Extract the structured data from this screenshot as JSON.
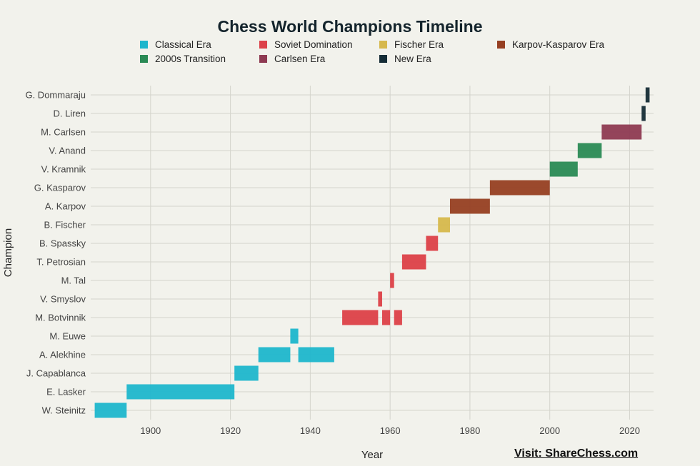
{
  "chart_data": {
    "type": "timeline",
    "title": "Chess World Champions Timeline",
    "xlabel": "Year",
    "ylabel": "Champion",
    "xlim": [
      1885,
      2026
    ],
    "xticks": [
      1900,
      1920,
      1940,
      1960,
      1980,
      2000,
      2020
    ],
    "grid": true,
    "legend_position": "top",
    "eras": [
      {
        "name": "Classical Era",
        "color": "#1eb6cc"
      },
      {
        "name": "Soviet Domination",
        "color": "#dc4048"
      },
      {
        "name": "Fischer Era",
        "color": "#d6b84c"
      },
      {
        "name": "Karpov-Kasparov Era",
        "color": "#963f22"
      },
      {
        "name": "2000s Transition",
        "color": "#2a8a55"
      },
      {
        "name": "Carlsen Era",
        "color": "#8e3a52"
      },
      {
        "name": "New Era",
        "color": "#152c36"
      }
    ],
    "champions": [
      "W. Steinitz",
      "E. Lasker",
      "J. Capablanca",
      "A. Alekhine",
      "M. Euwe",
      "M. Botvinnik",
      "V. Smyslov",
      "M. Tal",
      "T. Petrosian",
      "B. Spassky",
      "B. Fischer",
      "A. Karpov",
      "G. Kasparov",
      "V. Kramnik",
      "V. Anand",
      "M. Carlsen",
      "D. Liren",
      "G. Dommaraju"
    ],
    "reigns": [
      {
        "champion": "W. Steinitz",
        "start": 1886,
        "end": 1894,
        "era": "Classical Era"
      },
      {
        "champion": "E. Lasker",
        "start": 1894,
        "end": 1921,
        "era": "Classical Era"
      },
      {
        "champion": "J. Capablanca",
        "start": 1921,
        "end": 1927,
        "era": "Classical Era"
      },
      {
        "champion": "A. Alekhine",
        "start": 1927,
        "end": 1935,
        "era": "Classical Era"
      },
      {
        "champion": "M. Euwe",
        "start": 1935,
        "end": 1937,
        "era": "Classical Era"
      },
      {
        "champion": "A. Alekhine",
        "start": 1937,
        "end": 1946,
        "era": "Classical Era"
      },
      {
        "champion": "M. Botvinnik",
        "start": 1948,
        "end": 1957,
        "era": "Soviet Domination"
      },
      {
        "champion": "V. Smyslov",
        "start": 1957,
        "end": 1958,
        "era": "Soviet Domination"
      },
      {
        "champion": "M. Botvinnik",
        "start": 1958,
        "end": 1960,
        "era": "Soviet Domination"
      },
      {
        "champion": "M. Tal",
        "start": 1960,
        "end": 1961,
        "era": "Soviet Domination"
      },
      {
        "champion": "M. Botvinnik",
        "start": 1961,
        "end": 1963,
        "era": "Soviet Domination"
      },
      {
        "champion": "T. Petrosian",
        "start": 1963,
        "end": 1969,
        "era": "Soviet Domination"
      },
      {
        "champion": "B. Spassky",
        "start": 1969,
        "end": 1972,
        "era": "Soviet Domination"
      },
      {
        "champion": "B. Fischer",
        "start": 1972,
        "end": 1975,
        "era": "Fischer Era"
      },
      {
        "champion": "A. Karpov",
        "start": 1975,
        "end": 1985,
        "era": "Karpov-Kasparov Era"
      },
      {
        "champion": "G. Kasparov",
        "start": 1985,
        "end": 2000,
        "era": "Karpov-Kasparov Era"
      },
      {
        "champion": "V. Kramnik",
        "start": 2000,
        "end": 2007,
        "era": "2000s Transition"
      },
      {
        "champion": "V. Anand",
        "start": 2007,
        "end": 2013,
        "era": "2000s Transition"
      },
      {
        "champion": "M. Carlsen",
        "start": 2013,
        "end": 2023,
        "era": "Carlsen Era"
      },
      {
        "champion": "D. Liren",
        "start": 2023,
        "end": 2024,
        "era": "New Era"
      },
      {
        "champion": "G. Dommaraju",
        "start": 2024,
        "end": 2025,
        "era": "New Era"
      }
    ]
  },
  "footer": {
    "text": "Visit: ShareChess.com"
  }
}
